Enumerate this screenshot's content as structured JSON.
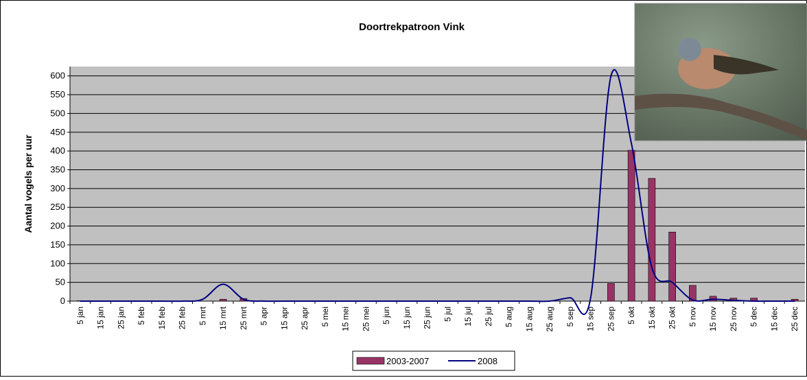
{
  "chart_data": {
    "type": "bar_line",
    "title": "Doortrekpatroon Vink",
    "y_label": "Aantal vogels per uur",
    "categories": [
      "5 jan",
      "15 jan",
      "25 jan",
      "5 feb",
      "15 feb",
      "25 feb",
      "5 mrt",
      "15 mrt",
      "25 mrt",
      "5 apr",
      "15 apr",
      "25 apr",
      "5 mei",
      "15 mei",
      "25 mei",
      "5 jun",
      "15 jun",
      "25 jun",
      "5 jul",
      "15 jul",
      "25 jul",
      "5 aug",
      "15 aug",
      "25 aug",
      "5 sep",
      "15 sep",
      "25 sep",
      "5 okt",
      "15 okt",
      "25 okt",
      "5 nov",
      "15 nov",
      "25 nov",
      "5 dec",
      "15 dec",
      "25 dec"
    ],
    "series": [
      {
        "name": "2003-2007",
        "type": "bar",
        "color": "#993366",
        "values": [
          1,
          0,
          0,
          0,
          0,
          0,
          0,
          5,
          7,
          0,
          0,
          0,
          0,
          0,
          0,
          0,
          0,
          0,
          0,
          0,
          0,
          0,
          0,
          0,
          0,
          0,
          47,
          402,
          327,
          184,
          42,
          13,
          8,
          8,
          0,
          5
        ]
      },
      {
        "name": "2008",
        "type": "line",
        "color": "#000080",
        "values": [
          0,
          0,
          0,
          0,
          0,
          0,
          5,
          45,
          5,
          0,
          0,
          0,
          0,
          0,
          0,
          0,
          0,
          0,
          0,
          0,
          0,
          0,
          0,
          0,
          9,
          8,
          600,
          420,
          90,
          50,
          3,
          5,
          2,
          0,
          0,
          0
        ]
      }
    ],
    "ylim": [
      0,
      625
    ],
    "yticks": [
      0,
      50,
      100,
      150,
      200,
      250,
      300,
      350,
      400,
      450,
      500,
      550,
      600
    ],
    "grid": true
  }
}
